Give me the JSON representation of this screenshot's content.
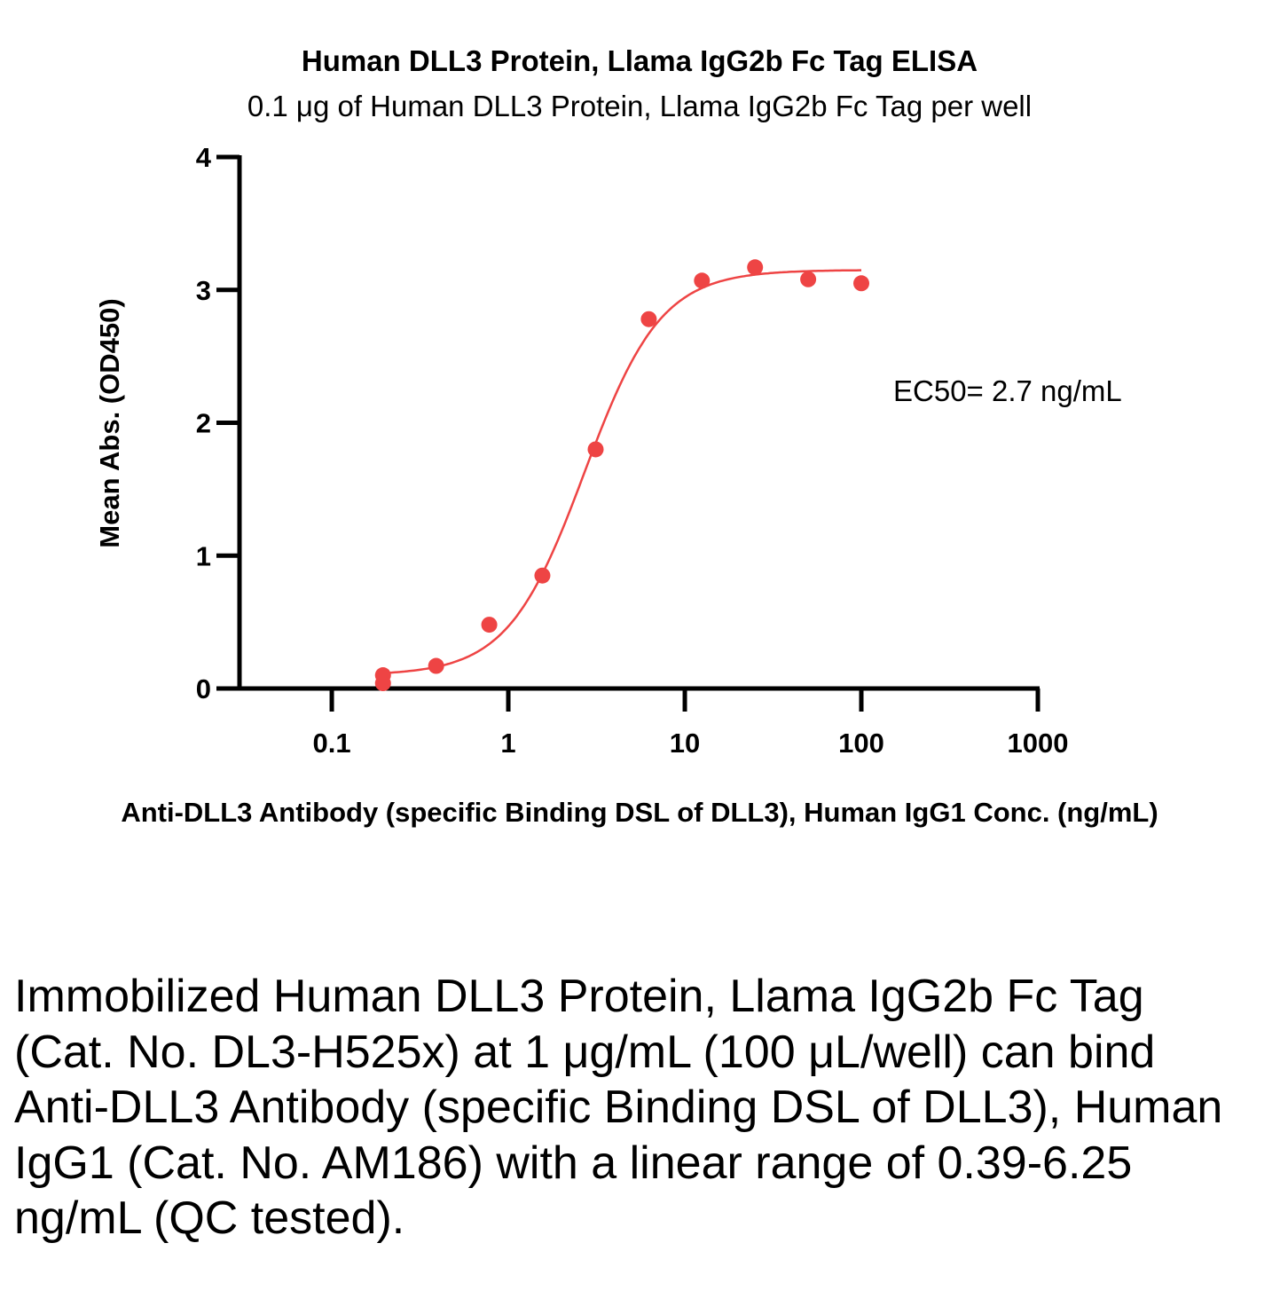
{
  "chart_data": {
    "type": "scatter",
    "title": "Human DLL3 Protein, Llama IgG2b Fc Tag ELISA",
    "subtitle": "0.1 μg of Human DLL3 Protein, Llama IgG2b Fc Tag per well",
    "xlabel": "Anti-DLL3 Antibody (specific Binding DSL of DLL3), Human IgG1 Conc. (ng/mL)",
    "ylabel": "Mean Abs. (OD450)",
    "x_scale": "log",
    "xlim": [
      0.03,
      1000
    ],
    "ylim": [
      0,
      4
    ],
    "x_ticks": [
      0.1,
      1,
      10,
      100,
      1000
    ],
    "x_tick_labels": [
      "0.1",
      "1",
      "10",
      "100",
      "1000"
    ],
    "y_ticks": [
      0,
      1,
      2,
      3,
      4
    ],
    "y_tick_labels": [
      "0",
      "1",
      "2",
      "3",
      "4"
    ],
    "series": [
      {
        "color": "#ee4444",
        "x": [
          0.195,
          0.195,
          0.39,
          0.78,
          1.56,
          3.125,
          6.25,
          12.5,
          25,
          50,
          100
        ],
        "y": [
          0.1,
          0.04,
          0.17,
          0.48,
          0.85,
          1.8,
          2.78,
          3.07,
          3.17,
          3.08,
          3.05
        ]
      }
    ],
    "fit_curve": {
      "model": "4PL",
      "bottom": 0.1,
      "top": 3.15,
      "ec50": 2.7,
      "hill": 2.0,
      "x_range": [
        0.195,
        100
      ],
      "color": "#ee4444"
    },
    "annotation": "EC50= 2.7 ng/mL",
    "grid": false
  },
  "caption": "Immobilized Human DLL3 Protein, Llama IgG2b Fc Tag (Cat. No. DL3-H525x) at 1 μg/mL (100 μL/well) can bind Anti-DLL3 Antibody (specific Binding DSL of DLL3), Human IgG1 (Cat. No. AM186) with a linear range of 0.39-6.25 ng/mL (QC tested)."
}
